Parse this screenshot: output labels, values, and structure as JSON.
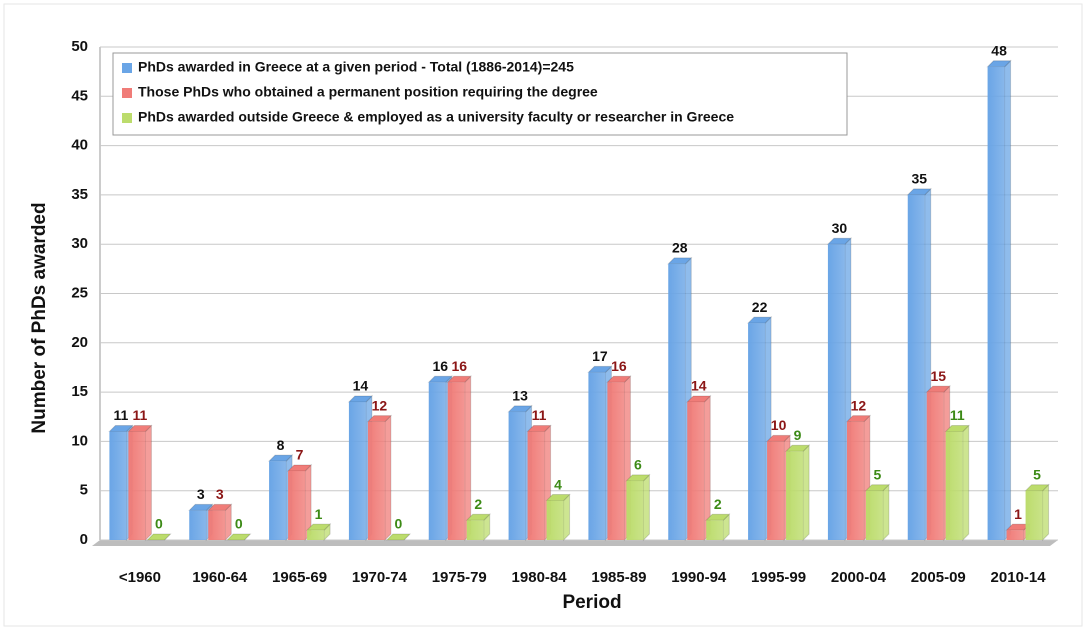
{
  "chart_data": {
    "type": "bar",
    "x_label": "Period",
    "y_label": "Number of PhDs awarded",
    "categories": [
      "<1960",
      "1960-64",
      "1965-69",
      "1970-74",
      "1975-79",
      "1980-84",
      "1985-89",
      "1990-94",
      "1995-99",
      "2000-04",
      "2005-09",
      "2010-14"
    ],
    "series": [
      {
        "name": "PhDs awarded in Greece at a given period - Total (1886-2014)=245",
        "color": "#6aa5e6",
        "label_color": "#111111",
        "values": [
          11,
          3,
          8,
          14,
          16,
          13,
          17,
          28,
          22,
          30,
          35,
          48
        ]
      },
      {
        "name": "Those PhDs who obtained a permanent position requiring the degree",
        "color": "#f07c78",
        "label_color": "#8b1616",
        "values": [
          11,
          3,
          7,
          12,
          16,
          11,
          16,
          14,
          10,
          12,
          15,
          1
        ]
      },
      {
        "name": "PhDs awarded outside Greece & employed as a university faculty or researcher in Greece",
        "color": "#bcdc6c",
        "label_color": "#3c8a16",
        "values": [
          0,
          0,
          1,
          0,
          2,
          4,
          6,
          2,
          9,
          5,
          11,
          5
        ]
      }
    ],
    "ylim": [
      0,
      50
    ],
    "yticks": [
      0,
      5,
      10,
      15,
      20,
      25,
      30,
      35,
      40,
      45,
      50
    ],
    "grid": true,
    "legend": "top-left"
  }
}
